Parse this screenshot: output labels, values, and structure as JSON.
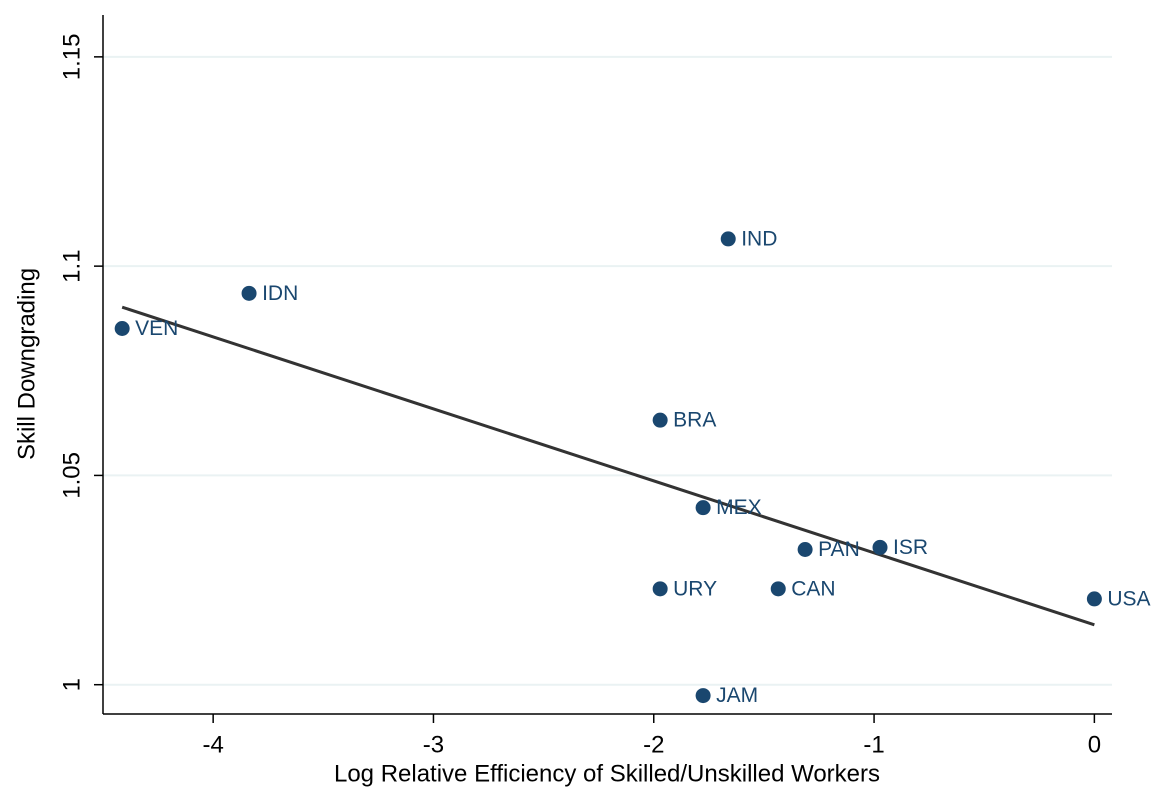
{
  "chart_data": {
    "type": "scatter",
    "x_label": "Log Relative Efficiency of Skilled/Unskilled Workers",
    "y_label": "Skill Downgrading",
    "xlim": [
      -4.5,
      0.08
    ],
    "ylim": [
      0.993,
      1.16
    ],
    "xticks": [
      -4,
      -3,
      -2,
      -1,
      0
    ],
    "yticks": [
      1,
      1.05,
      1.1,
      1.15
    ],
    "grid": true,
    "color": "#1a476f",
    "labels": [
      "VEN",
      "IDN",
      "IND",
      "BRA",
      "MEX",
      "PAN",
      "ISR",
      "URY",
      "CAN",
      "USA",
      "JAM"
    ],
    "x": [
      -4.413,
      -3.837,
      -1.662,
      -1.971,
      -1.776,
      -1.313,
      -0.973,
      -1.971,
      -1.435,
      0,
      -1.776
    ],
    "y": [
      1.0851,
      1.0935,
      1.1065,
      1.0632,
      1.0423,
      1.0323,
      1.0328,
      1.0229,
      1.0229,
      1.0205,
      0.9974
    ],
    "fit_line": {
      "color": "#333333",
      "x": [
        -4.413,
        0
      ],
      "y": [
        1.0902,
        1.0143
      ]
    }
  }
}
